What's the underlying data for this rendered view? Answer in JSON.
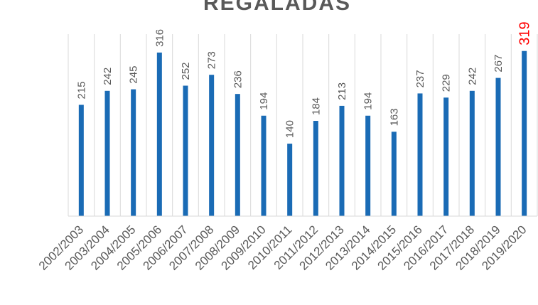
{
  "chart_data": {
    "type": "bar",
    "title": "REGALADAS",
    "categories": [
      "2002/2003",
      "2003/2004",
      "2004/2005",
      "2005/2006",
      "2006/2007",
      "2007/2008",
      "2008/2009",
      "2009/2010",
      "2010/2011",
      "2011/2012",
      "2012/2013",
      "2013/2014",
      "2014/2015",
      "2015/2016",
      "2016/2017",
      "2017/2018",
      "2018/2019",
      "2019/2020"
    ],
    "values": [
      215,
      242,
      245,
      316,
      252,
      273,
      236,
      194,
      140,
      184,
      213,
      194,
      163,
      237,
      229,
      242,
      267,
      319
    ],
    "ylim": [
      0,
      320
    ],
    "grid": "vertical",
    "legend": "none",
    "colors": {
      "bar": "#1a6bb5",
      "label": "#595959",
      "highlight_label": "#ff0000",
      "gridline": "#d9d9d9"
    },
    "highlight_index": 17
  }
}
